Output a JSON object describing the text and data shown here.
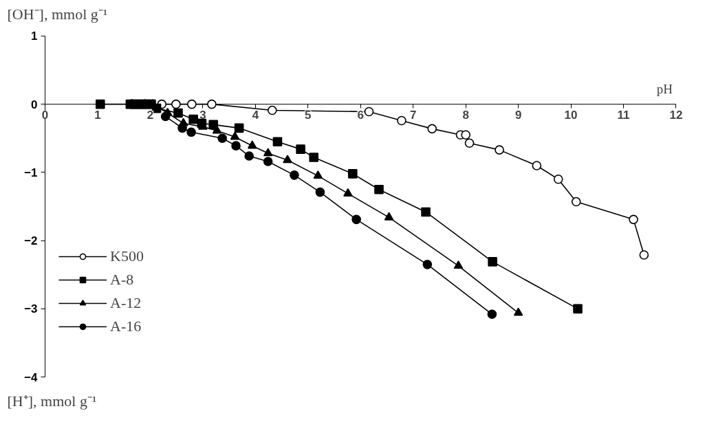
{
  "chart_data": {
    "type": "line",
    "ylabel": "[OH⁻], mmol g⁻¹",
    "xlabel": "pH",
    "annotations": [
      "[H⁺], mmol g⁻¹"
    ],
    "xlim": [
      0,
      12
    ],
    "xticks": [
      0,
      1,
      2,
      3,
      4,
      5,
      6,
      7,
      8,
      9,
      10,
      11,
      12
    ],
    "ylim": [
      -4,
      1
    ],
    "yticks": [
      -4,
      -3,
      -2,
      -1,
      0,
      1
    ],
    "grid": false,
    "legend": "bottom left",
    "series": [
      {
        "name": "K500",
        "color": "#000000",
        "marker": "circle_open",
        "x": [
          2.22,
          2.49,
          2.79,
          3.17,
          4.32,
          6.16,
          6.78,
          7.36,
          7.9,
          8.0,
          8.07,
          8.64,
          9.35,
          9.76,
          10.1,
          11.19,
          11.39
        ],
        "values": [
          0,
          0,
          0,
          0,
          -0.09,
          -0.11,
          -0.24,
          -0.36,
          -0.45,
          -0.45,
          -0.57,
          -0.67,
          -0.9,
          -1.1,
          -1.43,
          -1.69,
          -2.21
        ]
      },
      {
        "name": "A-8",
        "color": "#000000",
        "marker": "square",
        "x": [
          1.05,
          1.62,
          1.7,
          1.78,
          1.86,
          1.94,
          2.02,
          2.12,
          2.53,
          2.82,
          2.98,
          3.2,
          3.69,
          4.42,
          4.86,
          5.11,
          5.85,
          6.35,
          7.24,
          8.51,
          10.13
        ],
        "values": [
          0,
          0,
          0,
          0,
          0,
          0,
          0,
          -0.06,
          -0.13,
          -0.22,
          -0.28,
          -0.3,
          -0.35,
          -0.55,
          -0.66,
          -0.78,
          -1.02,
          -1.25,
          -1.58,
          -2.31,
          -3.0
        ]
      },
      {
        "name": "A-12",
        "color": "#000000",
        "marker": "triangle",
        "x": [
          1.65,
          1.9,
          2.05,
          2.33,
          2.63,
          3.0,
          3.27,
          3.61,
          3.94,
          4.24,
          4.61,
          5.19,
          5.76,
          6.54,
          7.86,
          9.0
        ],
        "values": [
          0,
          0,
          0,
          -0.13,
          -0.28,
          -0.33,
          -0.39,
          -0.48,
          -0.61,
          -0.72,
          -0.82,
          -1.05,
          -1.31,
          -1.66,
          -2.37,
          -3.06
        ]
      },
      {
        "name": "A-16",
        "color": "#000000",
        "marker": "circle",
        "x": [
          2.29,
          2.61,
          2.78,
          3.37,
          3.63,
          3.88,
          4.24,
          4.74,
          5.23,
          5.92,
          7.27,
          8.5
        ],
        "values": [
          -0.18,
          -0.35,
          -0.41,
          -0.5,
          -0.61,
          -0.76,
          -0.84,
          -1.04,
          -1.29,
          -1.69,
          -2.35,
          -3.08
        ]
      }
    ]
  }
}
